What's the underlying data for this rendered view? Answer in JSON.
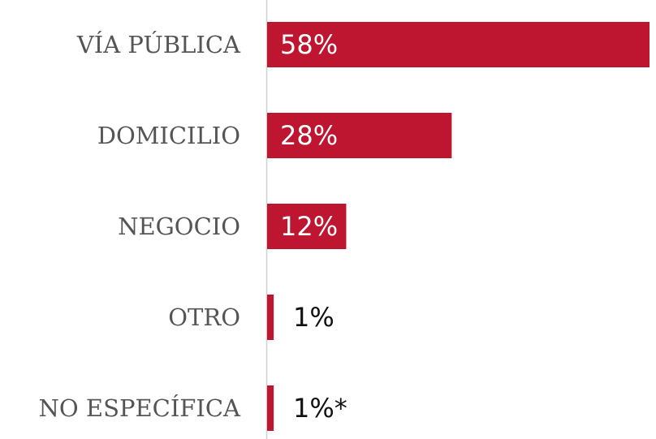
{
  "chart_data": {
    "type": "bar",
    "orientation": "horizontal",
    "categories": [
      "VÍA PÚBLICA",
      "DOMICILIO",
      "NEGOCIO",
      "OTRO",
      "NO ESPECÍFICA"
    ],
    "values": [
      58,
      28,
      12,
      1,
      1
    ],
    "value_labels": [
      "58%",
      "28%",
      "12%",
      "1%",
      "1%*"
    ],
    "color": "#be1630"
  }
}
